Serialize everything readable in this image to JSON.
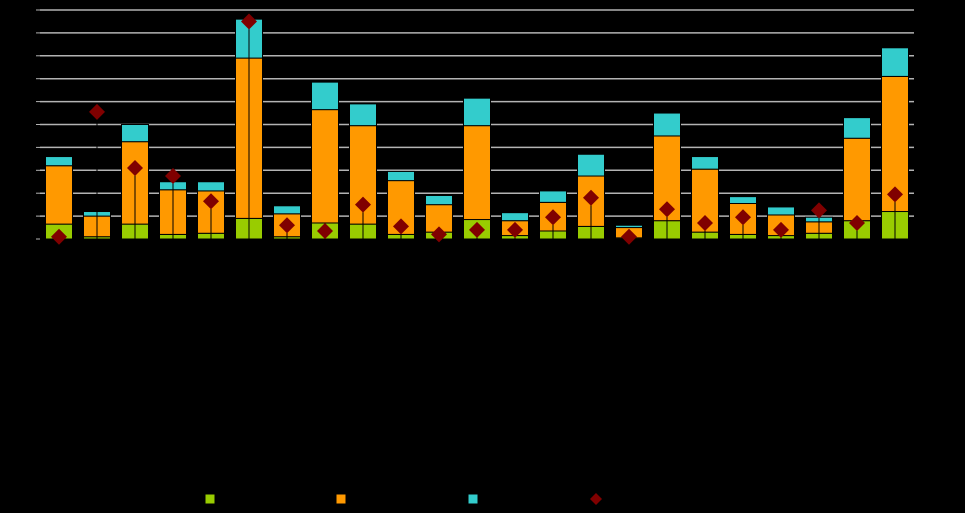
{
  "chart_data": {
    "type": "bar",
    "stacked": true,
    "categories": [
      "",
      "",
      "",
      "",
      "",
      "",
      "",
      "",
      "",
      "",
      "",
      "",
      "",
      "",
      "",
      "",
      "",
      "",
      "",
      "",
      "",
      "",
      ""
    ],
    "ylim": [
      0,
      10
    ],
    "grid": true,
    "legend_placement": "bottom",
    "series": [
      {
        "name": "",
        "kind": "bar",
        "color": "#99cc00",
        "values": [
          0.65,
          0.1,
          0.65,
          0.2,
          0.25,
          0.9,
          0.1,
          0.7,
          0.65,
          0.2,
          0.3,
          0.85,
          0.15,
          0.35,
          0.55,
          0.05,
          0.8,
          0.3,
          0.2,
          0.15,
          0.25,
          0.8,
          1.2
        ]
      },
      {
        "name": "",
        "kind": "bar",
        "color": "#ff9900",
        "values": [
          2.55,
          0.9,
          3.6,
          1.95,
          1.85,
          7.0,
          1.0,
          4.95,
          4.3,
          2.35,
          1.2,
          4.1,
          0.65,
          1.25,
          2.2,
          0.45,
          3.7,
          2.75,
          1.35,
          0.9,
          0.5,
          3.6,
          5.9
        ]
      },
      {
        "name": "",
        "kind": "bar",
        "color": "#33cccc",
        "values": [
          0.4,
          0.2,
          0.75,
          0.35,
          0.4,
          1.7,
          0.35,
          1.2,
          0.95,
          0.4,
          0.4,
          1.2,
          0.35,
          0.5,
          0.95,
          0.1,
          1.0,
          0.55,
          0.3,
          0.35,
          0.2,
          0.9,
          1.25
        ]
      },
      {
        "name": "",
        "kind": "marker",
        "color": "#800000",
        "values": [
          0.1,
          5.55,
          3.1,
          2.75,
          1.65,
          9.5,
          0.6,
          0.35,
          1.5,
          0.55,
          0.2,
          0.4,
          0.4,
          0.95,
          1.8,
          0.1,
          1.3,
          0.7,
          0.95,
          0.4,
          1.25,
          0.7,
          1.95
        ]
      }
    ]
  }
}
